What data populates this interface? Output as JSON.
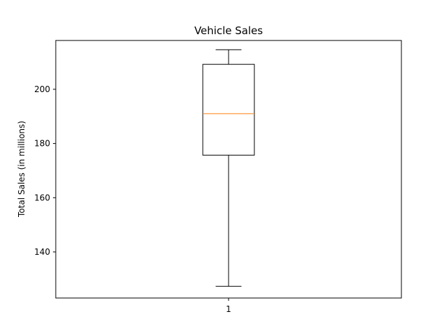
{
  "chart_data": {
    "type": "box",
    "title": "Vehicle Sales",
    "xlabel": "",
    "ylabel": "Total Sales (in millions)",
    "ylim": [
      123,
      218
    ],
    "yticks": [
      140,
      160,
      180,
      200
    ],
    "categories": [
      "1"
    ],
    "boxes": [
      {
        "category": "1",
        "whisker_low": 127.3,
        "q1": 175.7,
        "median": 191.0,
        "q3": 209.2,
        "whisker_high": 214.6
      }
    ],
    "grid": false,
    "legend": "none",
    "colors": {
      "box": "#000000",
      "median": "#ff7f0e",
      "axes": "#000000"
    }
  }
}
